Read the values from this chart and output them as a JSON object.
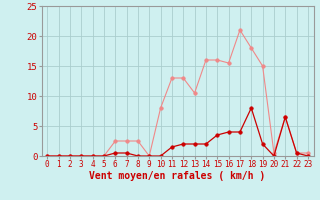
{
  "x": [
    0,
    1,
    2,
    3,
    4,
    5,
    6,
    7,
    8,
    9,
    10,
    11,
    12,
    13,
    14,
    15,
    16,
    17,
    18,
    19,
    20,
    21,
    22,
    23
  ],
  "y_rafales": [
    0,
    0,
    0,
    0,
    0,
    0,
    2.5,
    2.5,
    2.5,
    0,
    8,
    13,
    13,
    10.5,
    16,
    16,
    15.5,
    21,
    18,
    15,
    0.5,
    6.5,
    0.5,
    0.5
  ],
  "y_moyen": [
    0,
    0,
    0,
    0,
    0,
    0,
    0.5,
    0.5,
    0,
    0,
    0,
    1.5,
    2,
    2,
    2,
    3.5,
    4,
    4,
    8,
    2,
    0,
    6.5,
    0.5,
    0
  ],
  "bg_color": "#cff0f0",
  "grid_color": "#aacece",
  "line_color_rafales": "#f08888",
  "line_color_moyen": "#cc0000",
  "marker_size": 2.5,
  "xlabel": "Vent moyen/en rafales ( km/h )",
  "xlabel_color": "#cc0000",
  "ylabel_ticks": [
    0,
    5,
    10,
    15,
    20,
    25
  ],
  "ylim": [
    0,
    25
  ],
  "xlim_min": -0.5,
  "xlim_max": 23.5,
  "tick_color": "#cc0000",
  "spine_color": "#999999",
  "xlabel_fontsize": 7,
  "ytick_fontsize": 6.5,
  "xtick_fontsize": 5.5
}
